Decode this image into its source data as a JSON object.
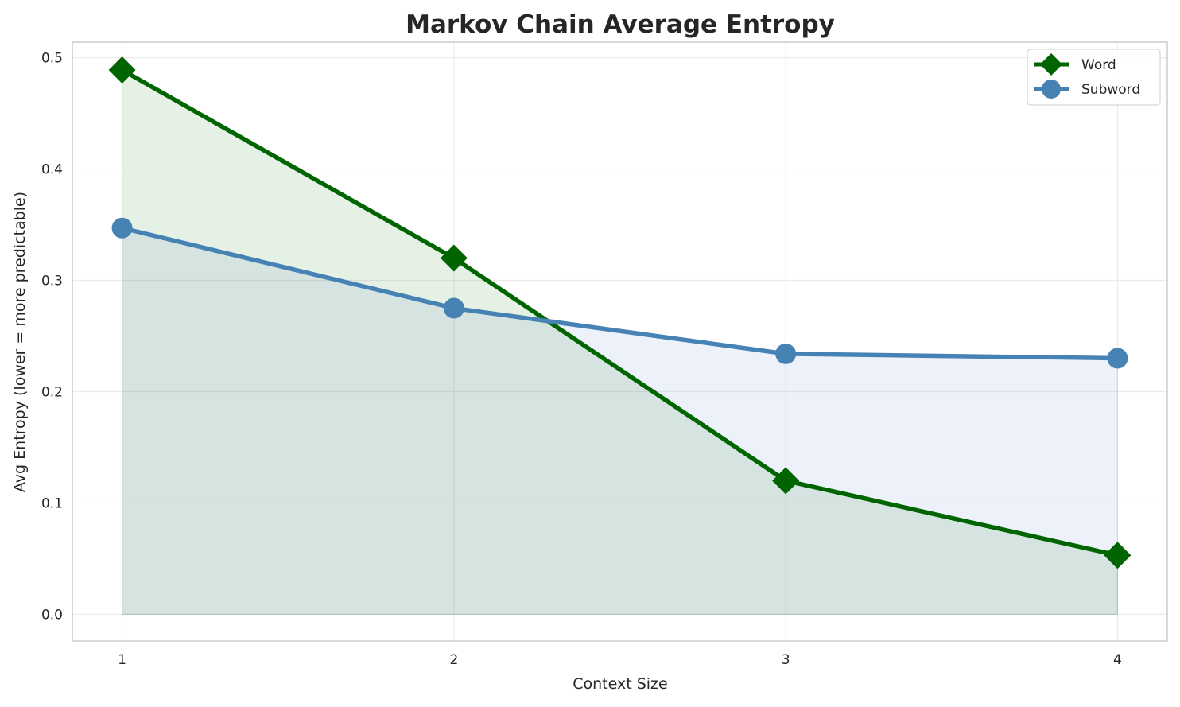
{
  "chart_data": {
    "type": "line",
    "title": "Markov Chain Average Entropy",
    "xlabel": "Context Size",
    "ylabel": "Avg Entropy (lower = more predictable)",
    "x": [
      1,
      2,
      3,
      4
    ],
    "xticks": [
      "1",
      "2",
      "3",
      "4"
    ],
    "yticks": [
      "0.0",
      "0.1",
      "0.2",
      "0.3",
      "0.4",
      "0.5"
    ],
    "xlim": [
      0.85,
      4.15
    ],
    "ylim": [
      -0.024,
      0.514
    ],
    "grid": true,
    "legend_position": "top-right",
    "area_fill": true,
    "series": [
      {
        "name": "Word",
        "values": [
          0.489,
          0.32,
          0.12,
          0.053
        ],
        "color": "#006400",
        "marker": "diamond"
      },
      {
        "name": "Subword",
        "values": [
          0.347,
          0.275,
          0.234,
          0.23
        ],
        "color": "#4682b4",
        "marker": "circle"
      }
    ]
  }
}
